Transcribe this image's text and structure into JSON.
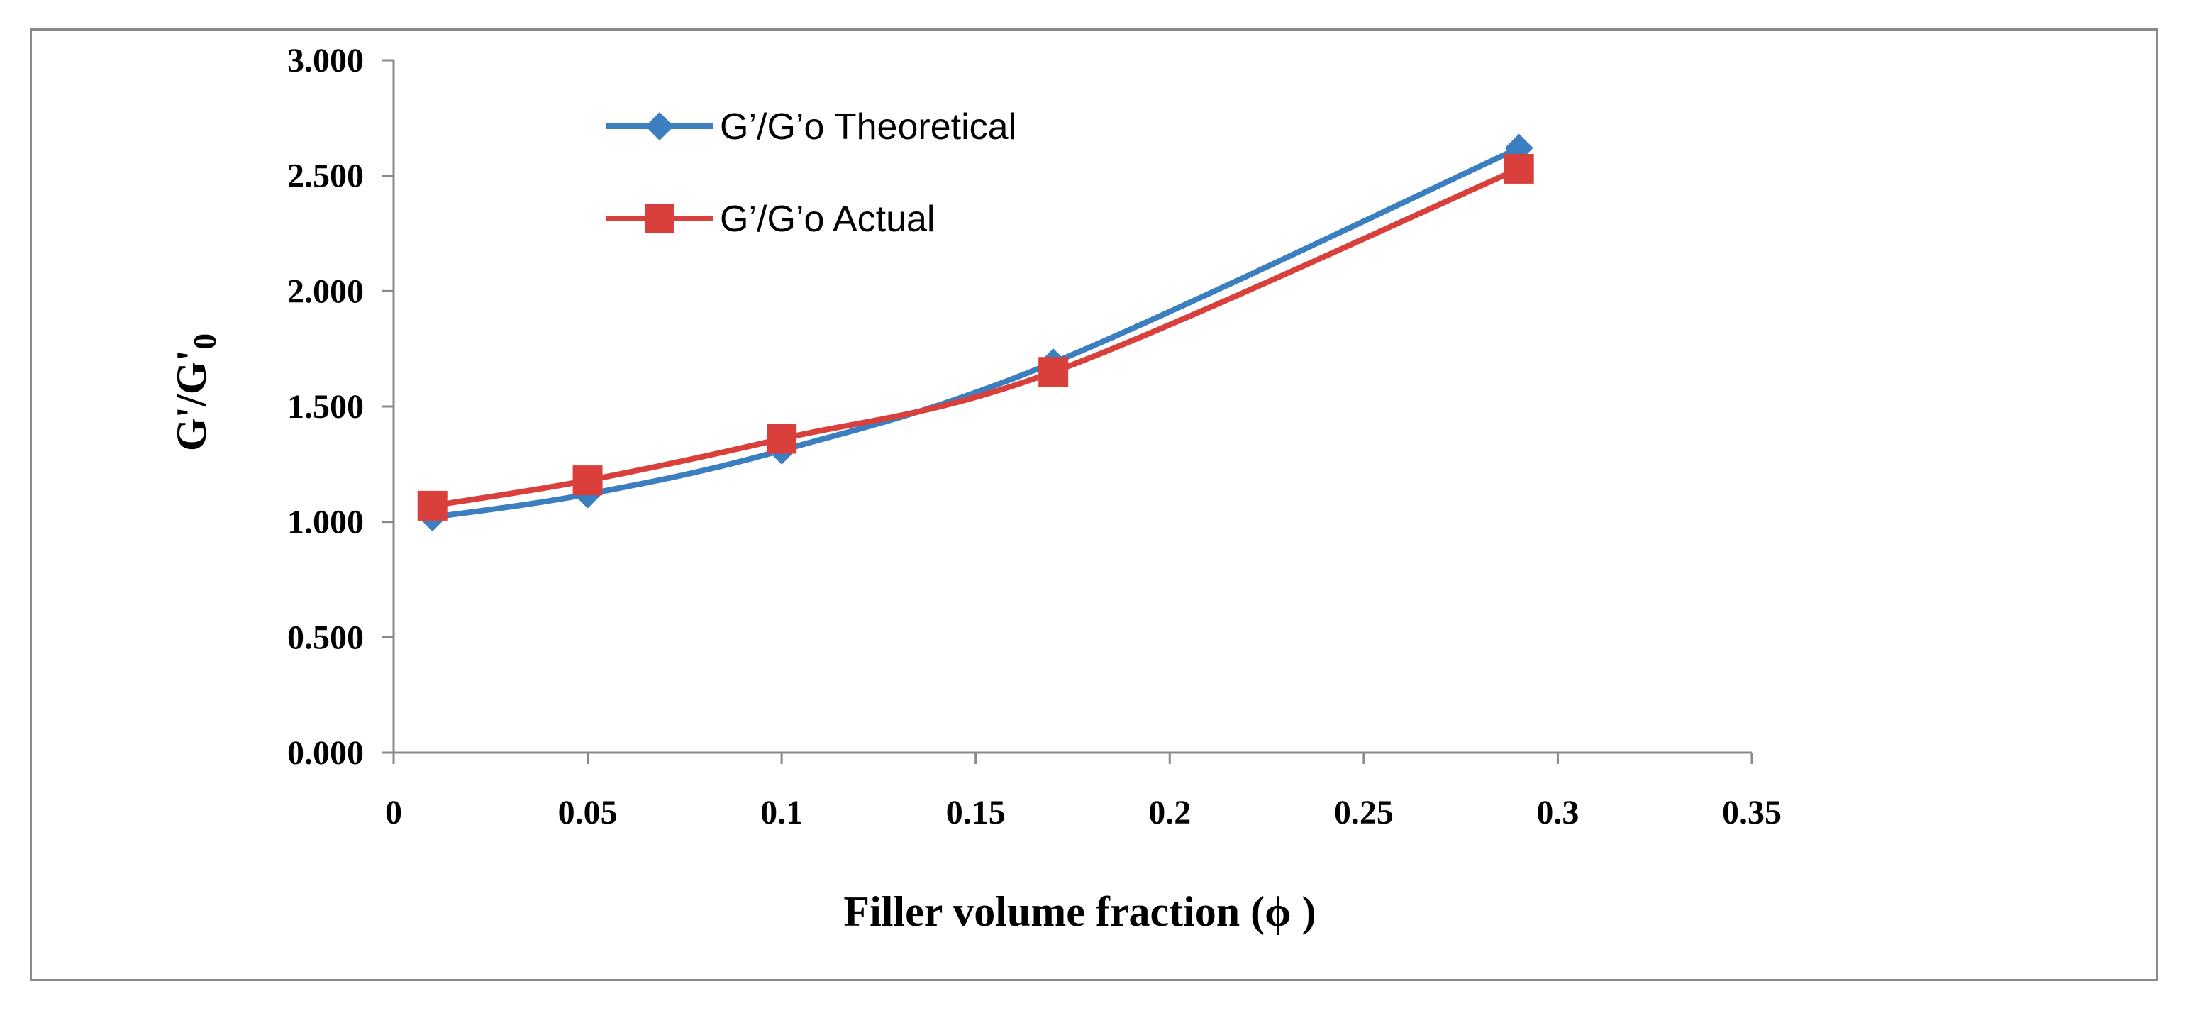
{
  "chart_data": {
    "type": "line",
    "title": "",
    "xlabel": "Filler volume fraction (ϕ )",
    "ylabel": "G'/G'",
    "ylabel_subscript": "0",
    "xlim": [
      0,
      0.35
    ],
    "ylim": [
      0,
      3
    ],
    "x_ticks": [
      0,
      0.05,
      0.1,
      0.15,
      0.2,
      0.25,
      0.3,
      0.35
    ],
    "x_tick_labels": [
      "0",
      "0.05",
      "0.1",
      "0.15",
      "0.2",
      "0.25",
      "0.3",
      "0.35"
    ],
    "y_ticks": [
      0,
      0.5,
      1,
      1.5,
      2,
      2.5,
      3
    ],
    "y_tick_labels": [
      "0.000",
      "0.500",
      "1.000",
      "1.500",
      "2.000",
      "2.500",
      "3.000"
    ],
    "grid": false,
    "legend_position": "top-left",
    "x": [
      0.01,
      0.05,
      0.1,
      0.17,
      0.29
    ],
    "series": [
      {
        "name": "G’/G’o Theoretical",
        "color": "#3b7fc0",
        "marker": "diamond",
        "values": [
          1.02,
          1.12,
          1.31,
          1.69,
          2.62
        ]
      },
      {
        "name": "G’/G’o Actual",
        "color": "#d9403c",
        "marker": "square",
        "values": [
          1.07,
          1.18,
          1.36,
          1.65,
          2.53
        ]
      }
    ]
  }
}
